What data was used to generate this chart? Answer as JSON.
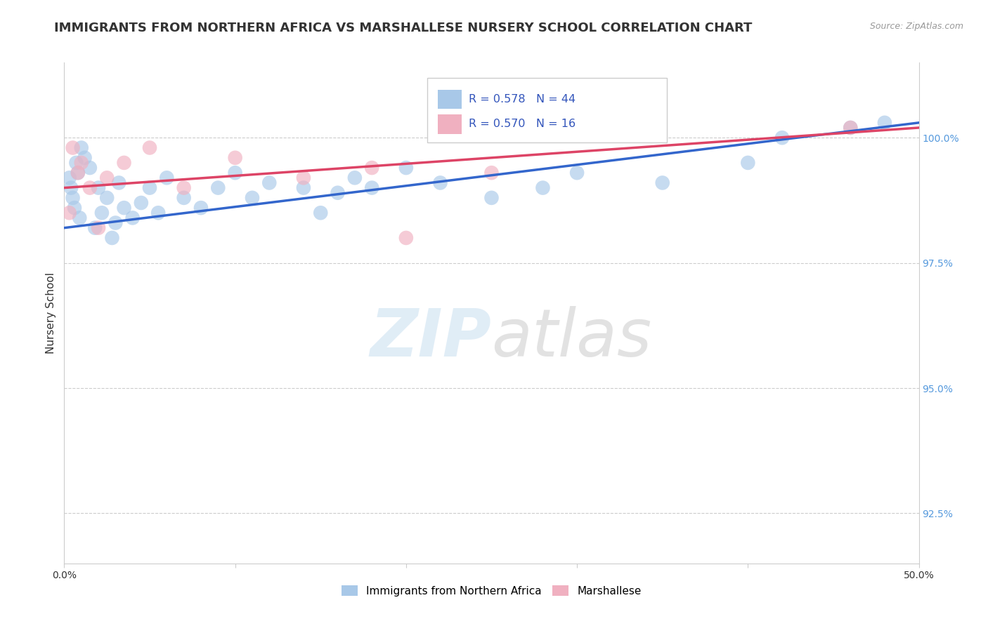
{
  "title": "IMMIGRANTS FROM NORTHERN AFRICA VS MARSHALLESE NURSERY SCHOOL CORRELATION CHART",
  "source": "Source: ZipAtlas.com",
  "ylabel": "Nursery School",
  "xlim": [
    0.0,
    50.0
  ],
  "ylim": [
    91.5,
    101.5
  ],
  "xticks": [
    0.0,
    10.0,
    20.0,
    30.0,
    40.0,
    50.0
  ],
  "xticklabels": [
    "0.0%",
    "",
    "",
    "",
    "",
    "50.0%"
  ],
  "yticks": [
    92.5,
    95.0,
    97.5,
    100.0
  ],
  "yticklabels": [
    "92.5%",
    "95.0%",
    "97.5%",
    "100.0%"
  ],
  "blue_label": "Immigrants from Northern Africa",
  "pink_label": "Marshallese",
  "R_blue": 0.578,
  "N_blue": 44,
  "R_pink": 0.57,
  "N_pink": 16,
  "blue_color": "#a8c8e8",
  "pink_color": "#f0b0c0",
  "blue_line_color": "#3366cc",
  "pink_line_color": "#dd4466",
  "blue_scatter_x": [
    0.3,
    0.4,
    0.5,
    0.6,
    0.7,
    0.8,
    0.9,
    1.0,
    1.2,
    1.5,
    1.8,
    2.0,
    2.2,
    2.5,
    2.8,
    3.0,
    3.2,
    3.5,
    4.0,
    4.5,
    5.0,
    5.5,
    6.0,
    7.0,
    8.0,
    9.0,
    10.0,
    11.0,
    12.0,
    14.0,
    15.0,
    16.0,
    17.0,
    18.0,
    20.0,
    22.0,
    25.0,
    28.0,
    30.0,
    35.0,
    40.0,
    42.0,
    46.0,
    48.0
  ],
  "blue_scatter_y": [
    99.2,
    99.0,
    98.8,
    98.6,
    99.5,
    99.3,
    98.4,
    99.8,
    99.6,
    99.4,
    98.2,
    99.0,
    98.5,
    98.8,
    98.0,
    98.3,
    99.1,
    98.6,
    98.4,
    98.7,
    99.0,
    98.5,
    99.2,
    98.8,
    98.6,
    99.0,
    99.3,
    98.8,
    99.1,
    99.0,
    98.5,
    98.9,
    99.2,
    99.0,
    99.4,
    99.1,
    98.8,
    99.0,
    99.3,
    99.1,
    99.5,
    100.0,
    100.2,
    100.3
  ],
  "pink_scatter_x": [
    0.3,
    0.5,
    0.8,
    1.0,
    1.5,
    2.0,
    2.5,
    3.5,
    5.0,
    7.0,
    10.0,
    14.0,
    18.0,
    20.0,
    25.0,
    46.0
  ],
  "pink_scatter_y": [
    98.5,
    99.8,
    99.3,
    99.5,
    99.0,
    98.2,
    99.2,
    99.5,
    99.8,
    99.0,
    99.6,
    99.2,
    99.4,
    98.0,
    99.3,
    100.2
  ],
  "blue_trend_x0": 0.0,
  "blue_trend_y0": 98.2,
  "blue_trend_x1": 50.0,
  "blue_trend_y1": 100.3,
  "pink_trend_x0": 0.0,
  "pink_trend_y0": 99.0,
  "pink_trend_x1": 50.0,
  "pink_trend_y1": 100.2,
  "watermark_zip": "ZIP",
  "watermark_atlas": "atlas",
  "background_color": "#ffffff",
  "grid_color": "#cccccc",
  "title_fontsize": 13,
  "axis_label_fontsize": 11,
  "tick_fontsize": 10,
  "legend_fontsize": 12,
  "tick_color": "#5599dd",
  "text_color": "#333333"
}
